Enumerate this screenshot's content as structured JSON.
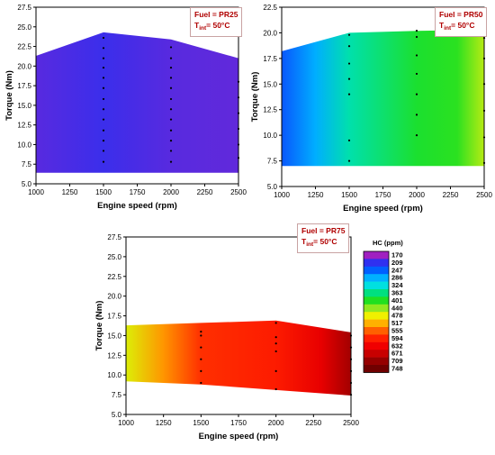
{
  "chart_data": [
    {
      "type": "contour",
      "xlabel": "Engine speed (rpm)",
      "ylabel": "Torque (Nm)",
      "xlim": [
        1000,
        2500
      ],
      "ylim": [
        5.0,
        27.5
      ],
      "xticks": [
        "1000",
        "1250",
        "1500",
        "1750",
        "2000",
        "2250",
        "2500"
      ],
      "yticks": [
        "5.0",
        "7.5",
        "10.0",
        "12.5",
        "15.0",
        "17.5",
        "20.0",
        "22.5",
        "25.0",
        "27.5"
      ],
      "annotation": {
        "fuel": "Fuel = PR25",
        "t_prefix": "T",
        "t_sub": "int",
        "t_value": "= 50°C",
        "position": "top-right"
      },
      "boundary_top": [
        [
          1000,
          21.3
        ],
        [
          1500,
          24.3
        ],
        [
          2000,
          23.4
        ],
        [
          2500,
          21.0
        ]
      ],
      "boundary_bottom": [
        [
          1000,
          6.4
        ],
        [
          2500,
          6.4
        ]
      ],
      "hc_values": [
        [
          1000,
          195
        ],
        [
          1500,
          205
        ],
        [
          2000,
          195
        ],
        [
          2500,
          192
        ]
      ],
      "points": [
        [
          1500,
          7.8
        ],
        [
          1500,
          9.2
        ],
        [
          1500,
          10.5
        ],
        [
          1500,
          11.8
        ],
        [
          1500,
          13.2
        ],
        [
          1500,
          14.5
        ],
        [
          1500,
          15.8
        ],
        [
          1500,
          17.2
        ],
        [
          1500,
          18.5
        ],
        [
          1500,
          19.8
        ],
        [
          1500,
          21.0
        ],
        [
          1500,
          22.3
        ],
        [
          1500,
          23.6
        ],
        [
          2000,
          7.8
        ],
        [
          2000,
          9.2
        ],
        [
          2000,
          10.5
        ],
        [
          2000,
          11.8
        ],
        [
          2000,
          13.2
        ],
        [
          2000,
          14.5
        ],
        [
          2000,
          15.8
        ],
        [
          2000,
          17.2
        ],
        [
          2000,
          18.5
        ],
        [
          2000,
          19.8
        ],
        [
          2000,
          21.0
        ],
        [
          2000,
          22.4
        ],
        [
          2500,
          8.3
        ],
        [
          2500,
          10.0
        ],
        [
          2500,
          12.0
        ],
        [
          2500,
          14.0
        ],
        [
          2500,
          16.0
        ],
        [
          2500,
          18.0
        ]
      ]
    },
    {
      "type": "contour",
      "xlabel": "Engine speed (rpm)",
      "ylabel": "Torque (Nm)",
      "xlim": [
        1000,
        2500
      ],
      "ylim": [
        5.0,
        22.5
      ],
      "xticks": [
        "1000",
        "1250",
        "1500",
        "1750",
        "2000",
        "2250",
        "2500"
      ],
      "yticks": [
        "5.0",
        "7.5",
        "10.0",
        "12.5",
        "15.0",
        "17.5",
        "20.0",
        "22.5"
      ],
      "annotation": {
        "fuel": "Fuel = PR50",
        "t_prefix": "T",
        "t_sub": "int",
        "t_value": "= 50°C",
        "position": "top-right"
      },
      "boundary_top": [
        [
          1000,
          18.2
        ],
        [
          1500,
          20.0
        ],
        [
          2000,
          20.2
        ],
        [
          2500,
          20.3
        ]
      ],
      "boundary_bottom": [
        [
          1000,
          7.0
        ],
        [
          2500,
          7.0
        ]
      ],
      "hc_values": [
        [
          1000,
          240
        ],
        [
          1250,
          285
        ],
        [
          1500,
          345
        ],
        [
          2000,
          395
        ],
        [
          2300,
          405
        ],
        [
          2500,
          455
        ]
      ],
      "points": [
        [
          1500,
          7.5
        ],
        [
          1500,
          9.5
        ],
        [
          1500,
          14.0
        ],
        [
          1500,
          15.5
        ],
        [
          1500,
          17.0
        ],
        [
          1500,
          18.7
        ],
        [
          1500,
          19.8
        ],
        [
          2000,
          10.0
        ],
        [
          2000,
          12.0
        ],
        [
          2000,
          14.0
        ],
        [
          2000,
          16.0
        ],
        [
          2000,
          17.8
        ],
        [
          2000,
          19.6
        ],
        [
          2000,
          20.2
        ],
        [
          2500,
          7.3
        ],
        [
          2500,
          9.8
        ],
        [
          2500,
          12.4
        ],
        [
          2500,
          15.0
        ],
        [
          2500,
          17.5
        ],
        [
          2500,
          19.5
        ],
        [
          2500,
          20.3
        ]
      ]
    },
    {
      "type": "contour",
      "xlabel": "Engine speed (rpm)",
      "ylabel": "Torque (Nm)",
      "xlim": [
        1000,
        2500
      ],
      "ylim": [
        5.0,
        27.5
      ],
      "xticks": [
        "1000",
        "1250",
        "1500",
        "1750",
        "2000",
        "2250",
        "2500"
      ],
      "yticks": [
        "5.0",
        "7.5",
        "10.0",
        "12.5",
        "15.0",
        "17.5",
        "20.0",
        "22.5",
        "25.0",
        "27.5"
      ],
      "annotation": {
        "fuel": "Fuel = PR75",
        "t_prefix": "T",
        "t_sub": "int",
        "t_value": "= 50°C",
        "position": "top-right"
      },
      "boundary_top": [
        [
          1000,
          16.3
        ],
        [
          1500,
          16.6
        ],
        [
          2000,
          16.9
        ],
        [
          2500,
          15.4
        ]
      ],
      "boundary_bottom": [
        [
          1000,
          9.2
        ],
        [
          1500,
          8.8
        ],
        [
          2000,
          8.1
        ],
        [
          2500,
          7.4
        ]
      ],
      "hc_values": [
        [
          1000,
          470
        ],
        [
          1250,
          530
        ],
        [
          1500,
          585
        ],
        [
          2000,
          600
        ],
        [
          2300,
          640
        ],
        [
          2500,
          700
        ]
      ],
      "points": [
        [
          1500,
          15.5
        ],
        [
          1500,
          15.0
        ],
        [
          1500,
          13.5
        ],
        [
          1500,
          12.0
        ],
        [
          1500,
          10.5
        ],
        [
          1500,
          9.0
        ],
        [
          2000,
          16.6
        ],
        [
          2000,
          14.8
        ],
        [
          2000,
          14.0
        ],
        [
          2000,
          13.0
        ],
        [
          2000,
          10.5
        ],
        [
          2000,
          8.2
        ],
        [
          2500,
          7.5
        ],
        [
          2500,
          9.0
        ],
        [
          2500,
          10.5
        ],
        [
          2500,
          12.0
        ],
        [
          2500,
          13.5
        ],
        [
          2500,
          15.0
        ]
      ]
    }
  ],
  "legend": {
    "title": "HC (ppm)",
    "levels": [
      "170",
      "209",
      "247",
      "286",
      "324",
      "363",
      "401",
      "440",
      "478",
      "517",
      "555",
      "594",
      "632",
      "671",
      "709",
      "748"
    ],
    "colors": [
      "#a020c0",
      "#3030f0",
      "#0060ff",
      "#00b0ff",
      "#00e0e0",
      "#00e080",
      "#20e020",
      "#90e820",
      "#f0f000",
      "#ffb000",
      "#ff6000",
      "#ff2000",
      "#f00000",
      "#c80000",
      "#960000",
      "#700000"
    ]
  }
}
